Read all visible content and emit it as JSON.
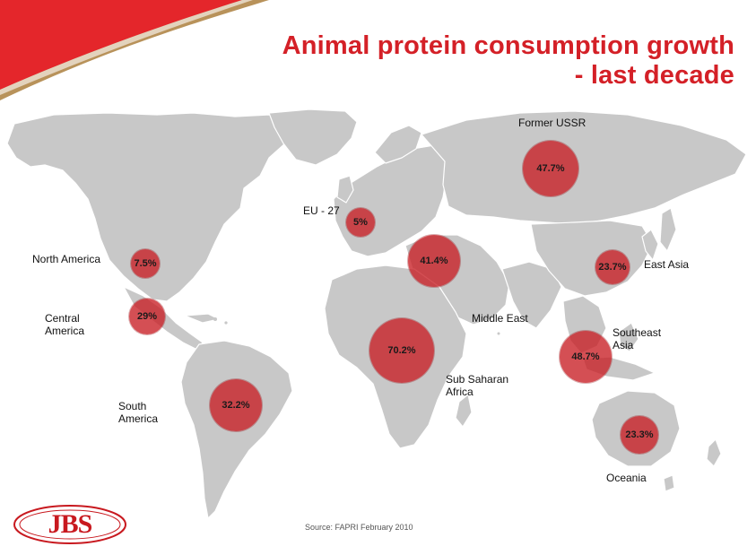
{
  "slide": {
    "title_line1": "Animal protein consumption growth",
    "title_line2": "- last decade",
    "source": "Source:  FAPRI February 2010",
    "logo_text": "JBS",
    "colors": {
      "title": "#d42027",
      "bubble": "#c81e24",
      "land": "#c8c8c8",
      "banner_red": "#e4262b",
      "banner_gold": "#b8925a"
    }
  },
  "regions": [
    {
      "id": "north-america",
      "label": "North America",
      "value": "7.5%"
    },
    {
      "id": "central-america",
      "label": "Central\nAmerica",
      "value": "29%"
    },
    {
      "id": "south-america",
      "label": "South\nAmerica",
      "value": "32.2%"
    },
    {
      "id": "eu-27",
      "label": "EU - 27",
      "value": "5%"
    },
    {
      "id": "middle-east",
      "label": "Middle East",
      "value": "41.4%"
    },
    {
      "id": "sub-saharan-africa",
      "label": "Sub Saharan\nAfrica",
      "value": "70.2%"
    },
    {
      "id": "former-ussr",
      "label": "Former USSR",
      "value": "47.7%"
    },
    {
      "id": "east-asia",
      "label": "East Asia",
      "value": "23.7%"
    },
    {
      "id": "southeast-asia",
      "label": "Southeast\nAsia",
      "value": "48.7%"
    },
    {
      "id": "oceania",
      "label": "Oceania",
      "value": "23.3%"
    }
  ]
}
